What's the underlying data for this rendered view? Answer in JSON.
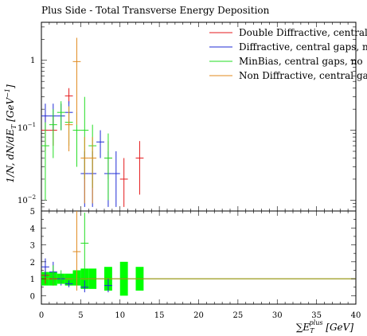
{
  "chart_data": [
    {
      "type": "scatter",
      "title": "Plus Side - Total Transverse Energy Deposition",
      "ylabel": "1/N, dN/dE_T [GeV^-1]",
      "yscale": "log",
      "ylim": [
        0.007,
        3.5
      ],
      "xlim": [
        0,
        40
      ],
      "yticks": [
        {
          "value": 1,
          "label": "1"
        },
        {
          "value": 0.1,
          "label": "10^-1"
        },
        {
          "value": 0.01,
          "label": "10^-2"
        }
      ],
      "legend": [
        "Double Diffractive, central",
        "Diffractive, central gaps, n",
        "MinBias, central gaps, no",
        "Non Diffractive, central ga"
      ],
      "legend_position": "top-right",
      "series": [
        {
          "name": "Double Diffractive, central",
          "color": "#e41a1c",
          "points": [
            {
              "x": 0.5,
              "y": 0.1,
              "ylo": 0.05,
              "yhi": 0.17
            },
            {
              "x": 1.5,
              "y": 0.1,
              "ylo": 0.06,
              "yhi": 0.16
            },
            {
              "x": 3.5,
              "y": 0.31,
              "ylo": 0.24,
              "yhi": 0.4
            },
            {
              "x": 8.5,
              "y": 0.04,
              "ylo": 0.02,
              "yhi": 0.07
            },
            {
              "x": 10.5,
              "y": 0.02,
              "ylo": 0.008,
              "yhi": 0.04
            },
            {
              "x": 12.5,
              "y": 0.04,
              "ylo": 0.012,
              "yhi": 0.07
            }
          ]
        },
        {
          "name": "Diffractive, central gaps, n",
          "color": "#1f2bd6",
          "points": [
            {
              "x": 0.5,
              "y": 0.16,
              "ylo": 0.1,
              "yhi": 0.24
            },
            {
              "x": 1.5,
              "y": 0.16,
              "ylo": 0.1,
              "yhi": 0.24
            },
            {
              "x": 2.5,
              "y": 0.16,
              "ylo": 0.1,
              "yhi": 0.24
            },
            {
              "x": 3.5,
              "y": 0.18,
              "ylo": 0.12,
              "yhi": 0.26
            },
            {
              "x": 5.5,
              "y": 0.024,
              "ylo": 0.008,
              "yhi": 0.05
            },
            {
              "x": 6.5,
              "y": 0.024,
              "ylo": 0.008,
              "yhi": 0.05
            },
            {
              "x": 7.5,
              "y": 0.068,
              "ylo": 0.04,
              "yhi": 0.1
            },
            {
              "x": 8.5,
              "y": 0.024,
              "ylo": 0.008,
              "yhi": 0.05
            },
            {
              "x": 9.5,
              "y": 0.024,
              "ylo": 0.008,
              "yhi": 0.05
            }
          ]
        },
        {
          "name": "MinBias, central gaps, no",
          "color": "#22dd22",
          "points": [
            {
              "x": 0.5,
              "y": 0.06,
              "ylo": 0.01,
              "yhi": 0.13
            },
            {
              "x": 1.5,
              "y": 0.12,
              "ylo": 0.04,
              "yhi": 0.2
            },
            {
              "x": 2.5,
              "y": 0.18,
              "ylo": 0.1,
              "yhi": 0.26
            },
            {
              "x": 3.5,
              "y": 0.13,
              "ylo": 0.06,
              "yhi": 0.22
            },
            {
              "x": 4.5,
              "y": 0.1,
              "ylo": 0.03,
              "yhi": 0.18
            },
            {
              "x": 5.5,
              "y": 0.1,
              "ylo": 0.02,
              "yhi": 0.3
            },
            {
              "x": 6.5,
              "y": 0.06,
              "ylo": 0.015,
              "yhi": 0.12
            },
            {
              "x": 8.5,
              "y": 0.04,
              "ylo": 0.01,
              "yhi": 0.09
            }
          ]
        },
        {
          "name": "Non Diffractive, central ga",
          "color": "#e08a1e",
          "points": [
            {
              "x": 3.5,
              "y": 0.12,
              "ylo": 0.05,
              "yhi": 0.22
            },
            {
              "x": 4.5,
              "y": 0.96,
              "ylo": 0.12,
              "yhi": 2.1
            },
            {
              "x": 5.5,
              "y": 0.04,
              "ylo": 0.009,
              "yhi": 0.08
            },
            {
              "x": 6.5,
              "y": 0.04,
              "ylo": 0.009,
              "yhi": 0.08
            }
          ]
        }
      ]
    },
    {
      "type": "scatter",
      "xlabel": "∑E_T^plus [GeV]",
      "xlim": [
        0,
        40
      ],
      "ylim": [
        -0.5,
        5
      ],
      "xticks": [
        0,
        5,
        10,
        15,
        20,
        25,
        30,
        35,
        40
      ],
      "yticks": [
        0,
        1,
        2,
        3,
        4,
        5
      ],
      "reference_line": {
        "y": 1,
        "color": "#9a9a1a"
      },
      "band": {
        "color": "#00ff00",
        "bins": [
          {
            "x0": 0,
            "x1": 1,
            "lo": 0.6,
            "hi": 1.4
          },
          {
            "x0": 1,
            "x1": 2,
            "lo": 0.6,
            "hi": 1.4
          },
          {
            "x0": 2,
            "x1": 3,
            "lo": 0.7,
            "hi": 1.3
          },
          {
            "x0": 3,
            "x1": 4,
            "lo": 0.6,
            "hi": 1.3
          },
          {
            "x0": 4,
            "x1": 5,
            "lo": 0.6,
            "hi": 1.5
          },
          {
            "x0": 5,
            "x1": 6,
            "lo": 0.4,
            "hi": 1.6
          },
          {
            "x0": 6,
            "x1": 7,
            "lo": 0.4,
            "hi": 1.6
          },
          {
            "x0": 8,
            "x1": 9,
            "lo": 0.3,
            "hi": 1.7
          },
          {
            "x0": 10,
            "x1": 11,
            "lo": 0.0,
            "hi": 2.0
          },
          {
            "x0": 12,
            "x1": 13,
            "lo": 0.3,
            "hi": 1.7
          }
        ]
      },
      "series": [
        {
          "name": "Double Diffractive, central",
          "color": "#e41a1c",
          "points": [
            {
              "x": 0.5,
              "y": 1.2,
              "ylo": 0.7,
              "yhi": 1.7
            },
            {
              "x": 1.5,
              "y": 1.0,
              "ylo": 0.6,
              "yhi": 1.5
            }
          ]
        },
        {
          "name": "Diffractive, central gaps, n",
          "color": "#1f2bd6",
          "points": [
            {
              "x": 0.5,
              "y": 1.7,
              "ylo": 1.1,
              "yhi": 2.2
            },
            {
              "x": 1.5,
              "y": 1.4,
              "ylo": 0.9,
              "yhi": 2.0
            },
            {
              "x": 2.5,
              "y": 1.0,
              "ylo": 0.6,
              "yhi": 1.3
            },
            {
              "x": 3.5,
              "y": 0.7,
              "ylo": 0.5,
              "yhi": 0.9
            },
            {
              "x": 5.5,
              "y": 0.5,
              "ylo": 0.2,
              "yhi": 0.9
            },
            {
              "x": 8.5,
              "y": 0.6,
              "ylo": 0.2,
              "yhi": 1.0
            }
          ]
        },
        {
          "name": "MinBias, central gaps, no",
          "color": "#22dd22",
          "points": [
            {
              "x": 1.5,
              "y": 1.2,
              "ylo": 0.6,
              "yhi": 1.8
            },
            {
              "x": 2.5,
              "y": 1.1,
              "ylo": 0.7,
              "yhi": 1.5
            },
            {
              "x": 4.5,
              "y": 1.0,
              "ylo": 0.7,
              "yhi": 1.4
            },
            {
              "x": 5.5,
              "y": 3.1,
              "ylo": 1.0,
              "yhi": 4.9
            }
          ]
        },
        {
          "name": "Non Diffractive, central ga",
          "color": "#e08a1e",
          "points": [
            {
              "x": 4.5,
              "y": 2.6,
              "ylo": 0.3,
              "yhi": 5.0
            }
          ]
        }
      ]
    }
  ]
}
